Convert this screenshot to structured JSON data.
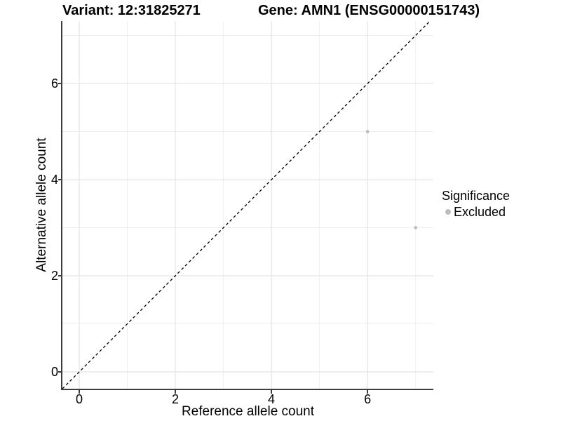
{
  "titles": {
    "left": "Variant: 12:31825271",
    "right": "Gene: AMN1 (ENSG00000151743)"
  },
  "chart_data": {
    "type": "scatter",
    "xlabel": "Reference allele count",
    "ylabel": "Alternative allele count",
    "xticks": [
      0,
      2,
      4,
      6
    ],
    "yticks": [
      0,
      2,
      4,
      6
    ],
    "minor_ticks": [
      1,
      3,
      5,
      7
    ],
    "xlim": [
      -0.35,
      7.37
    ],
    "ylim": [
      -0.35,
      7.3
    ],
    "grid": true,
    "series": [
      {
        "name": "Excluded",
        "color": "#bdbdbd",
        "points": [
          [
            6,
            5
          ],
          [
            7,
            3
          ]
        ]
      }
    ],
    "reference_line": {
      "equation": "y = x",
      "style": "dashed",
      "color": "#000000"
    },
    "legend": {
      "position": "right",
      "title": "Significance",
      "items": [
        {
          "label": "Excluded",
          "color": "#bdbdbd"
        }
      ]
    }
  },
  "colors": {
    "background": "#ffffff",
    "text": "#000000",
    "axis": "#3d3d3d",
    "grid_major": "#e3e3e3",
    "grid_minor": "#f0f0f0",
    "point": "#bdbdbd"
  }
}
